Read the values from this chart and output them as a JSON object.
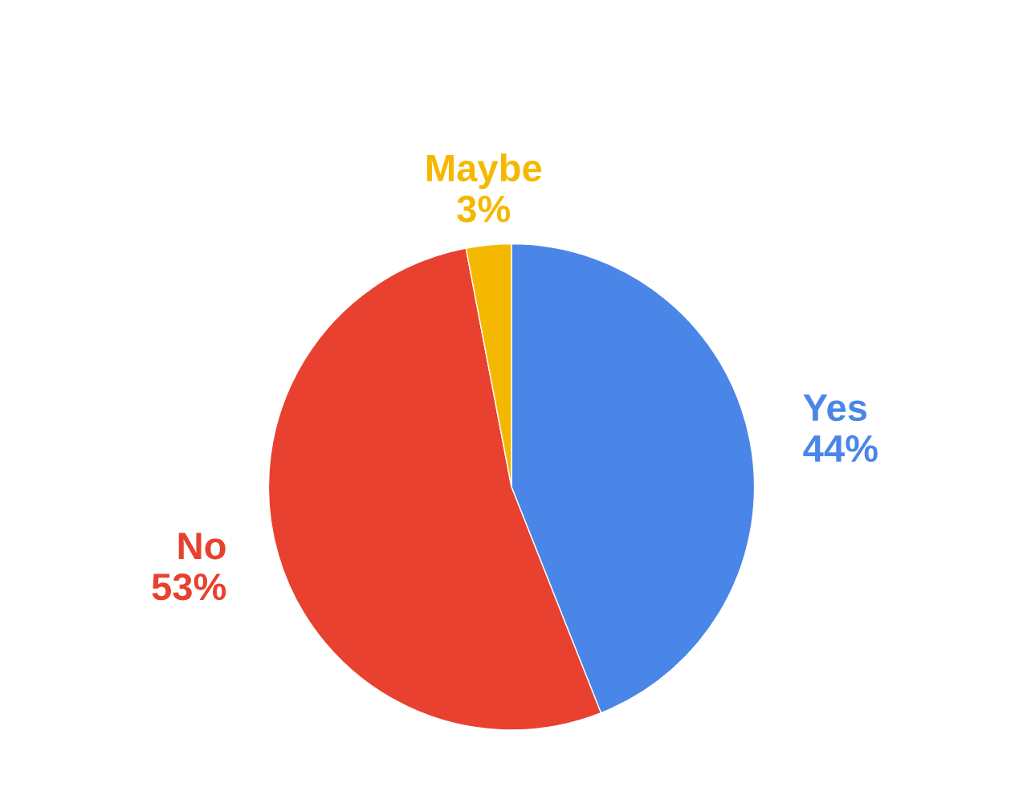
{
  "chart_data": {
    "type": "pie",
    "categories": [
      "Yes",
      "No",
      "Maybe"
    ],
    "values": [
      44,
      53,
      3
    ],
    "colors": [
      "#4a86e8",
      "#e8412f",
      "#f5b800"
    ],
    "value_labels": [
      "44%",
      "53%",
      "3%"
    ],
    "legend": false
  }
}
